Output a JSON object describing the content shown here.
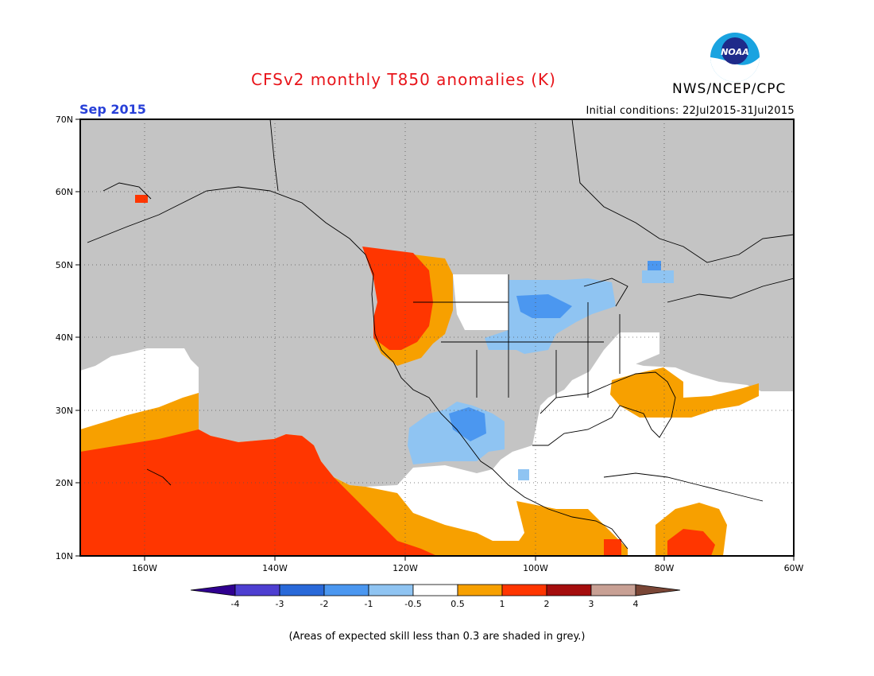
{
  "header": {
    "title": "CFSv2 monthly T850 anomalies (K)",
    "agency": "NWS/NCEP/CPC",
    "logo_text": "NOAA",
    "month": "Sep 2015",
    "initial_conditions": "Initial conditions: 22Jul2015-31Jul2015"
  },
  "map": {
    "lat_labels": [
      "70N",
      "60N",
      "50N",
      "40N",
      "30N",
      "20N",
      "10N"
    ],
    "lon_labels": [
      "160W",
      "140W",
      "120W",
      "100W",
      "80W",
      "60W"
    ],
    "lon_range": [
      "170W",
      "60W"
    ],
    "lat_range": [
      "10N",
      "70N"
    ],
    "skill_mask_color": "#c4c4c4",
    "neutral_color": "#ffffff"
  },
  "colorbar": {
    "tick_labels": [
      "-4",
      "-3",
      "-2",
      "-1",
      "-0.5",
      "0.5",
      "1",
      "2",
      "3",
      "4"
    ],
    "colors": [
      "#300090",
      "#4e3fd1",
      "#2969d9",
      "#4b97f0",
      "#8fc4f2",
      "#ffffff",
      "#f7a000",
      "#ff3600",
      "#a50d0d",
      "#c8a094",
      "#7a4636"
    ]
  },
  "footnote": "(Areas of expected skill less than 0.3 are shaded in grey.)"
}
